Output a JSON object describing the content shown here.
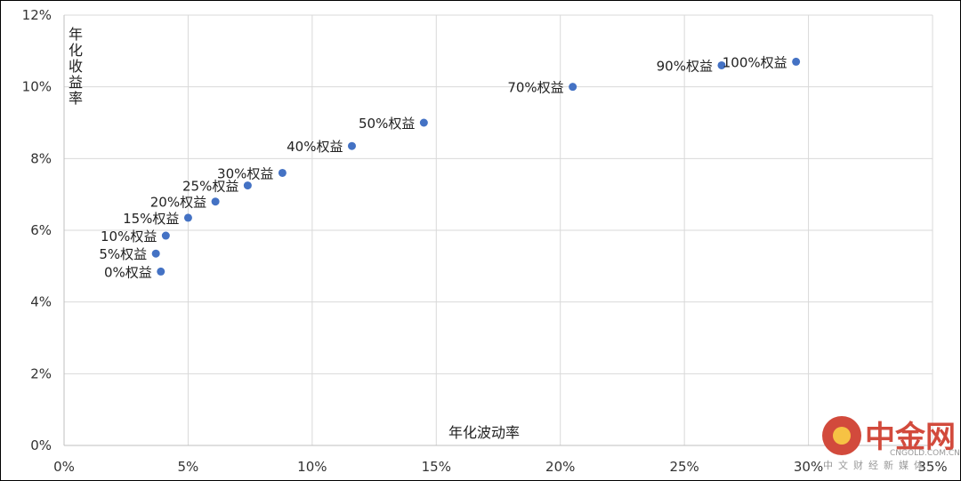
{
  "chart_data": {
    "type": "scatter",
    "title": "",
    "xlabel": "年化波动率",
    "ylabel": "年化收益率",
    "xlim": [
      0,
      35
    ],
    "ylim": [
      0,
      12
    ],
    "x_ticks": [
      "0%",
      "5%",
      "10%",
      "15%",
      "20%",
      "25%",
      "30%",
      "35%"
    ],
    "y_ticks": [
      "0%",
      "2%",
      "4%",
      "6%",
      "8%",
      "10%",
      "12%"
    ],
    "grid": true,
    "marker_color": "#4472C4",
    "points": [
      {
        "label": "0%权益",
        "x": 3.9,
        "y": 4.85
      },
      {
        "label": "5%权益",
        "x": 3.7,
        "y": 5.35
      },
      {
        "label": "10%权益",
        "x": 4.1,
        "y": 5.85
      },
      {
        "label": "15%权益",
        "x": 5.0,
        "y": 6.35
      },
      {
        "label": "20%权益",
        "x": 6.1,
        "y": 6.8
      },
      {
        "label": "25%权益",
        "x": 7.4,
        "y": 7.25
      },
      {
        "label": "30%权益",
        "x": 8.8,
        "y": 7.6
      },
      {
        "label": "40%权益",
        "x": 11.6,
        "y": 8.35
      },
      {
        "label": "50%权益",
        "x": 14.5,
        "y": 9.0
      },
      {
        "label": "70%权益",
        "x": 20.5,
        "y": 10.0
      },
      {
        "label": "90%权益",
        "x": 26.5,
        "y": 10.6
      },
      {
        "label": "100%权益",
        "x": 29.5,
        "y": 10.7
      }
    ]
  },
  "watermark": {
    "brand": "中金网",
    "url": "CNGOLD.COM.CN",
    "tagline": "中文财经新媒体",
    "color": "#D24A3C"
  }
}
